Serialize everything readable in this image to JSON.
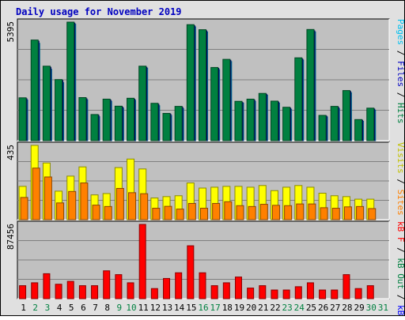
{
  "chart_data": [
    {
      "type": "bar",
      "title": "Daily usage for November 2019",
      "categories": [
        "1",
        "2",
        "3",
        "4",
        "5",
        "6",
        "7",
        "8",
        "9",
        "10",
        "11",
        "12",
        "13",
        "14",
        "15",
        "16",
        "17",
        "18",
        "19",
        "20",
        "21",
        "22",
        "23",
        "24",
        "25",
        "26",
        "27",
        "28",
        "29",
        "30",
        "31"
      ],
      "weekend_days": [
        "2",
        "3",
        "9",
        "10",
        "16",
        "17",
        "23",
        "24",
        "30",
        "31"
      ],
      "ymax_label": "5395",
      "ylim": [
        0,
        5395
      ],
      "series": [
        {
          "name": "Pages",
          "color": "#00c0f0",
          "values": [
            1850,
            4430,
            3250,
            2640,
            5300,
            1860,
            1090,
            1790,
            1480,
            1840,
            3300,
            1590,
            1150,
            1460,
            5180,
            4950,
            3230,
            3600,
            1710,
            1790,
            2070,
            1710,
            1430,
            3670,
            4950,
            1080,
            1460,
            2180,
            880,
            1390,
            0
          ]
        },
        {
          "name": "Files",
          "color": "#0000c0",
          "values": [
            1910,
            4530,
            3340,
            2740,
            5350,
            1910,
            1160,
            1850,
            1530,
            1890,
            3340,
            1660,
            1210,
            1520,
            5230,
            5000,
            3290,
            3660,
            1740,
            1850,
            2110,
            1760,
            1480,
            3720,
            5000,
            1120,
            1520,
            2240,
            930,
            1440,
            0
          ]
        },
        {
          "name": "Hits",
          "color": "#008040",
          "values": [
            1950,
            4580,
            3390,
            2780,
            5395,
            1960,
            1190,
            1890,
            1570,
            1930,
            3390,
            1700,
            1240,
            1560,
            5280,
            5050,
            3330,
            3700,
            1790,
            1890,
            2150,
            1800,
            1520,
            3770,
            5060,
            1150,
            1560,
            2280,
            960,
            1480,
            0
          ]
        }
      ]
    },
    {
      "type": "bar",
      "ymax_label": "435",
      "ylim": [
        0,
        435
      ],
      "series": [
        {
          "name": "Visits",
          "color": "#ffff00",
          "values": [
            195,
            435,
            332,
            167,
            255,
            309,
            145,
            153,
            305,
            355,
            297,
            127,
            135,
            140,
            215,
            185,
            190,
            195,
            195,
            190,
            200,
            170,
            190,
            200,
            190,
            155,
            140,
            135,
            120,
            120,
            0
          ]
        },
        {
          "name": "Sites",
          "color": "#ff8000",
          "values": [
            130,
            302,
            250,
            98,
            165,
            215,
            85,
            77,
            183,
            158,
            152,
            67,
            78,
            62,
            95,
            67,
            95,
            105,
            82,
            77,
            90,
            84,
            82,
            92,
            92,
            70,
            67,
            75,
            77,
            65,
            0
          ]
        }
      ]
    },
    {
      "type": "bar",
      "ymax_label": "87456",
      "ylim": [
        0,
        87456
      ],
      "series": [
        {
          "name": "kB In",
          "color": "#0000ff",
          "values": [
            0,
            0,
            0,
            0,
            0,
            0,
            0,
            0,
            0,
            0,
            0,
            0,
            0,
            0,
            0,
            0,
            0,
            0,
            0,
            0,
            0,
            0,
            0,
            0,
            0,
            0,
            0,
            0,
            0,
            0,
            0
          ]
        },
        {
          "name": "kB Out",
          "color": "#008040",
          "values": [
            0,
            0,
            0,
            0,
            0,
            0,
            0,
            0,
            0,
            0,
            0,
            0,
            0,
            0,
            0,
            0,
            0,
            0,
            0,
            0,
            0,
            0,
            0,
            0,
            0,
            0,
            0,
            0,
            0,
            0,
            0
          ]
        },
        {
          "name": "kB F",
          "color": "#ff0000",
          "values": [
            15300,
            18700,
            29400,
            17000,
            20400,
            15300,
            15300,
            32800,
            28300,
            18700,
            87456,
            11900,
            23800,
            30500,
            62300,
            30500,
            15300,
            18700,
            25500,
            12500,
            15300,
            10200,
            10200,
            14100,
            18700,
            10200,
            10200,
            28300,
            11900,
            15300,
            0
          ]
        }
      ]
    }
  ],
  "legend": {
    "top": [
      {
        "text": "Pages",
        "color": "#00c0f0"
      },
      {
        "text": " / ",
        "color": "#000000"
      },
      {
        "text": "Files",
        "color": "#0000c0"
      },
      {
        "text": " / ",
        "color": "#000000"
      },
      {
        "text": "Hits",
        "color": "#008040"
      }
    ],
    "middle": [
      {
        "text": "Visits",
        "color": "#c0c000"
      },
      {
        "text": " / ",
        "color": "#000000"
      },
      {
        "text": "Sites",
        "color": "#ff8000"
      }
    ],
    "bottom": [
      {
        "text": "kB F",
        "color": "#ff0000"
      },
      {
        "text": " / ",
        "color": "#000000"
      },
      {
        "text": "kB Out",
        "color": "#008040"
      },
      {
        "text": " / ",
        "color": "#000000"
      },
      {
        "text": "kB In",
        "color": "#0000ff"
      }
    ]
  },
  "colors": {
    "background": "#e0e0e0",
    "plot_area": "#c0c0c0",
    "title": "#0000c0",
    "weekday_label": "#000000",
    "weekend_label": "#008040"
  }
}
